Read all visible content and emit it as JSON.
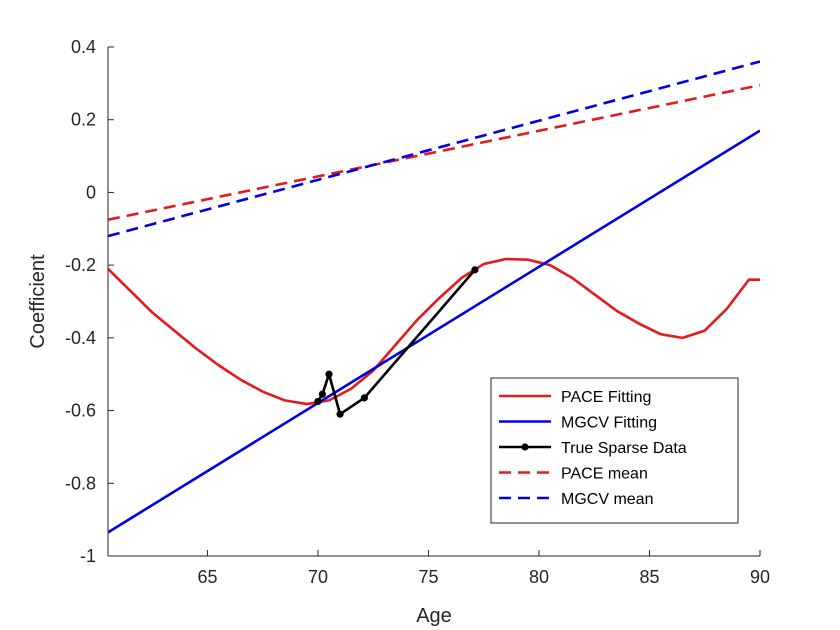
{
  "chart_data": {
    "type": "line",
    "xlabel": "Age",
    "ylabel": "Coefficient",
    "xlim": [
      60.5,
      90
    ],
    "ylim": [
      -1,
      0.4
    ],
    "xticks": [
      65,
      70,
      75,
      80,
      85,
      90
    ],
    "yticks": [
      -1,
      -0.8,
      -0.6,
      -0.4,
      -0.2,
      0,
      0.2,
      0.4
    ],
    "xtick_labels": [
      "65",
      "70",
      "75",
      "80",
      "85",
      "90"
    ],
    "ytick_labels": [
      "-1",
      "-0.8",
      "-0.6",
      "-0.4",
      "-0.2",
      "0",
      "0.2",
      "0.4"
    ],
    "grid": false,
    "legend_position": "bottom-right",
    "series": [
      {
        "name": "PACE Fitting",
        "color": "#e41a1c",
        "style": "solid",
        "x": [
          60.5,
          61.5,
          62.5,
          63.5,
          64.5,
          65.5,
          66.5,
          67.5,
          68.5,
          69.5,
          70.5,
          71.5,
          72.5,
          73.5,
          74.5,
          75.5,
          76.5,
          77.5,
          78.5,
          79.5,
          80.5,
          81.5,
          82.5,
          83.5,
          84.5,
          85.5,
          86.5,
          87.5,
          88.5,
          89.5,
          90
        ],
        "y": [
          -0.21,
          -0.27,
          -0.33,
          -0.38,
          -0.43,
          -0.475,
          -0.515,
          -0.548,
          -0.572,
          -0.582,
          -0.572,
          -0.54,
          -0.49,
          -0.42,
          -0.35,
          -0.29,
          -0.235,
          -0.197,
          -0.183,
          -0.185,
          -0.2,
          -0.235,
          -0.28,
          -0.325,
          -0.36,
          -0.39,
          -0.4,
          -0.38,
          -0.32,
          -0.24,
          -0.24
        ]
      },
      {
        "name": "MGCV Fitting",
        "color": "#0000e6",
        "style": "solid",
        "x": [
          60.5,
          90
        ],
        "y": [
          -0.935,
          0.17
        ]
      },
      {
        "name": "True Sparse Data",
        "color": "#000000",
        "style": "solid-marker",
        "x": [
          70.0,
          70.2,
          70.5,
          71.0,
          72.1,
          77.1
        ],
        "y": [
          -0.575,
          -0.555,
          -0.5,
          -0.61,
          -0.565,
          -0.213
        ]
      },
      {
        "name": "PACE mean",
        "color": "#e41a1c",
        "style": "dashed",
        "x": [
          60.5,
          90
        ],
        "y": [
          -0.075,
          0.295
        ]
      },
      {
        "name": "MGCV mean",
        "color": "#0000e6",
        "style": "dashed",
        "x": [
          60.5,
          90
        ],
        "y": [
          -0.12,
          0.36
        ]
      }
    ]
  }
}
